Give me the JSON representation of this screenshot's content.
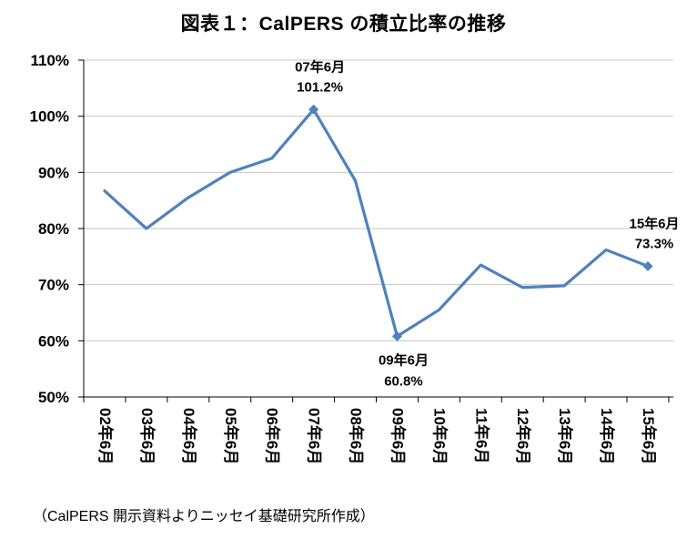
{
  "chart_data": {
    "type": "line",
    "title": "図表１：CalPERS の積立比率の推移",
    "categories": [
      "02年6月",
      "03年6月",
      "04年6月",
      "05年6月",
      "06年6月",
      "07年6月",
      "08年6月",
      "09年6月",
      "10年6月",
      "11年6月",
      "12年6月",
      "13年6月",
      "14年6月",
      "15年6月"
    ],
    "values": [
      86.7,
      80.0,
      85.5,
      90.0,
      92.5,
      101.2,
      88.5,
      60.8,
      65.5,
      73.5,
      69.5,
      69.8,
      76.2,
      73.3
    ],
    "ylim": [
      50,
      110
    ],
    "ytick_step": 10,
    "ytick_labels": [
      "50%",
      "60%",
      "70%",
      "80%",
      "90%",
      "100%",
      "110%"
    ],
    "grid": true,
    "legend": "none",
    "line_color": "#4F81BD",
    "grid_color": "#C6C6C6",
    "axis_color": "#000000",
    "marker_indices": [
      5,
      7,
      13
    ],
    "annotations": [
      {
        "index": 5,
        "lines": [
          "07年6月",
          "101.2%"
        ],
        "position": "above"
      },
      {
        "index": 7,
        "lines": [
          "09年6月",
          "60.8%"
        ],
        "position": "below"
      },
      {
        "index": 13,
        "lines": [
          "15年6月",
          "73.3%"
        ],
        "position": "above"
      }
    ],
    "source_note": "（CalPERS 開示資料よりニッセイ基礎研究所作成）"
  }
}
